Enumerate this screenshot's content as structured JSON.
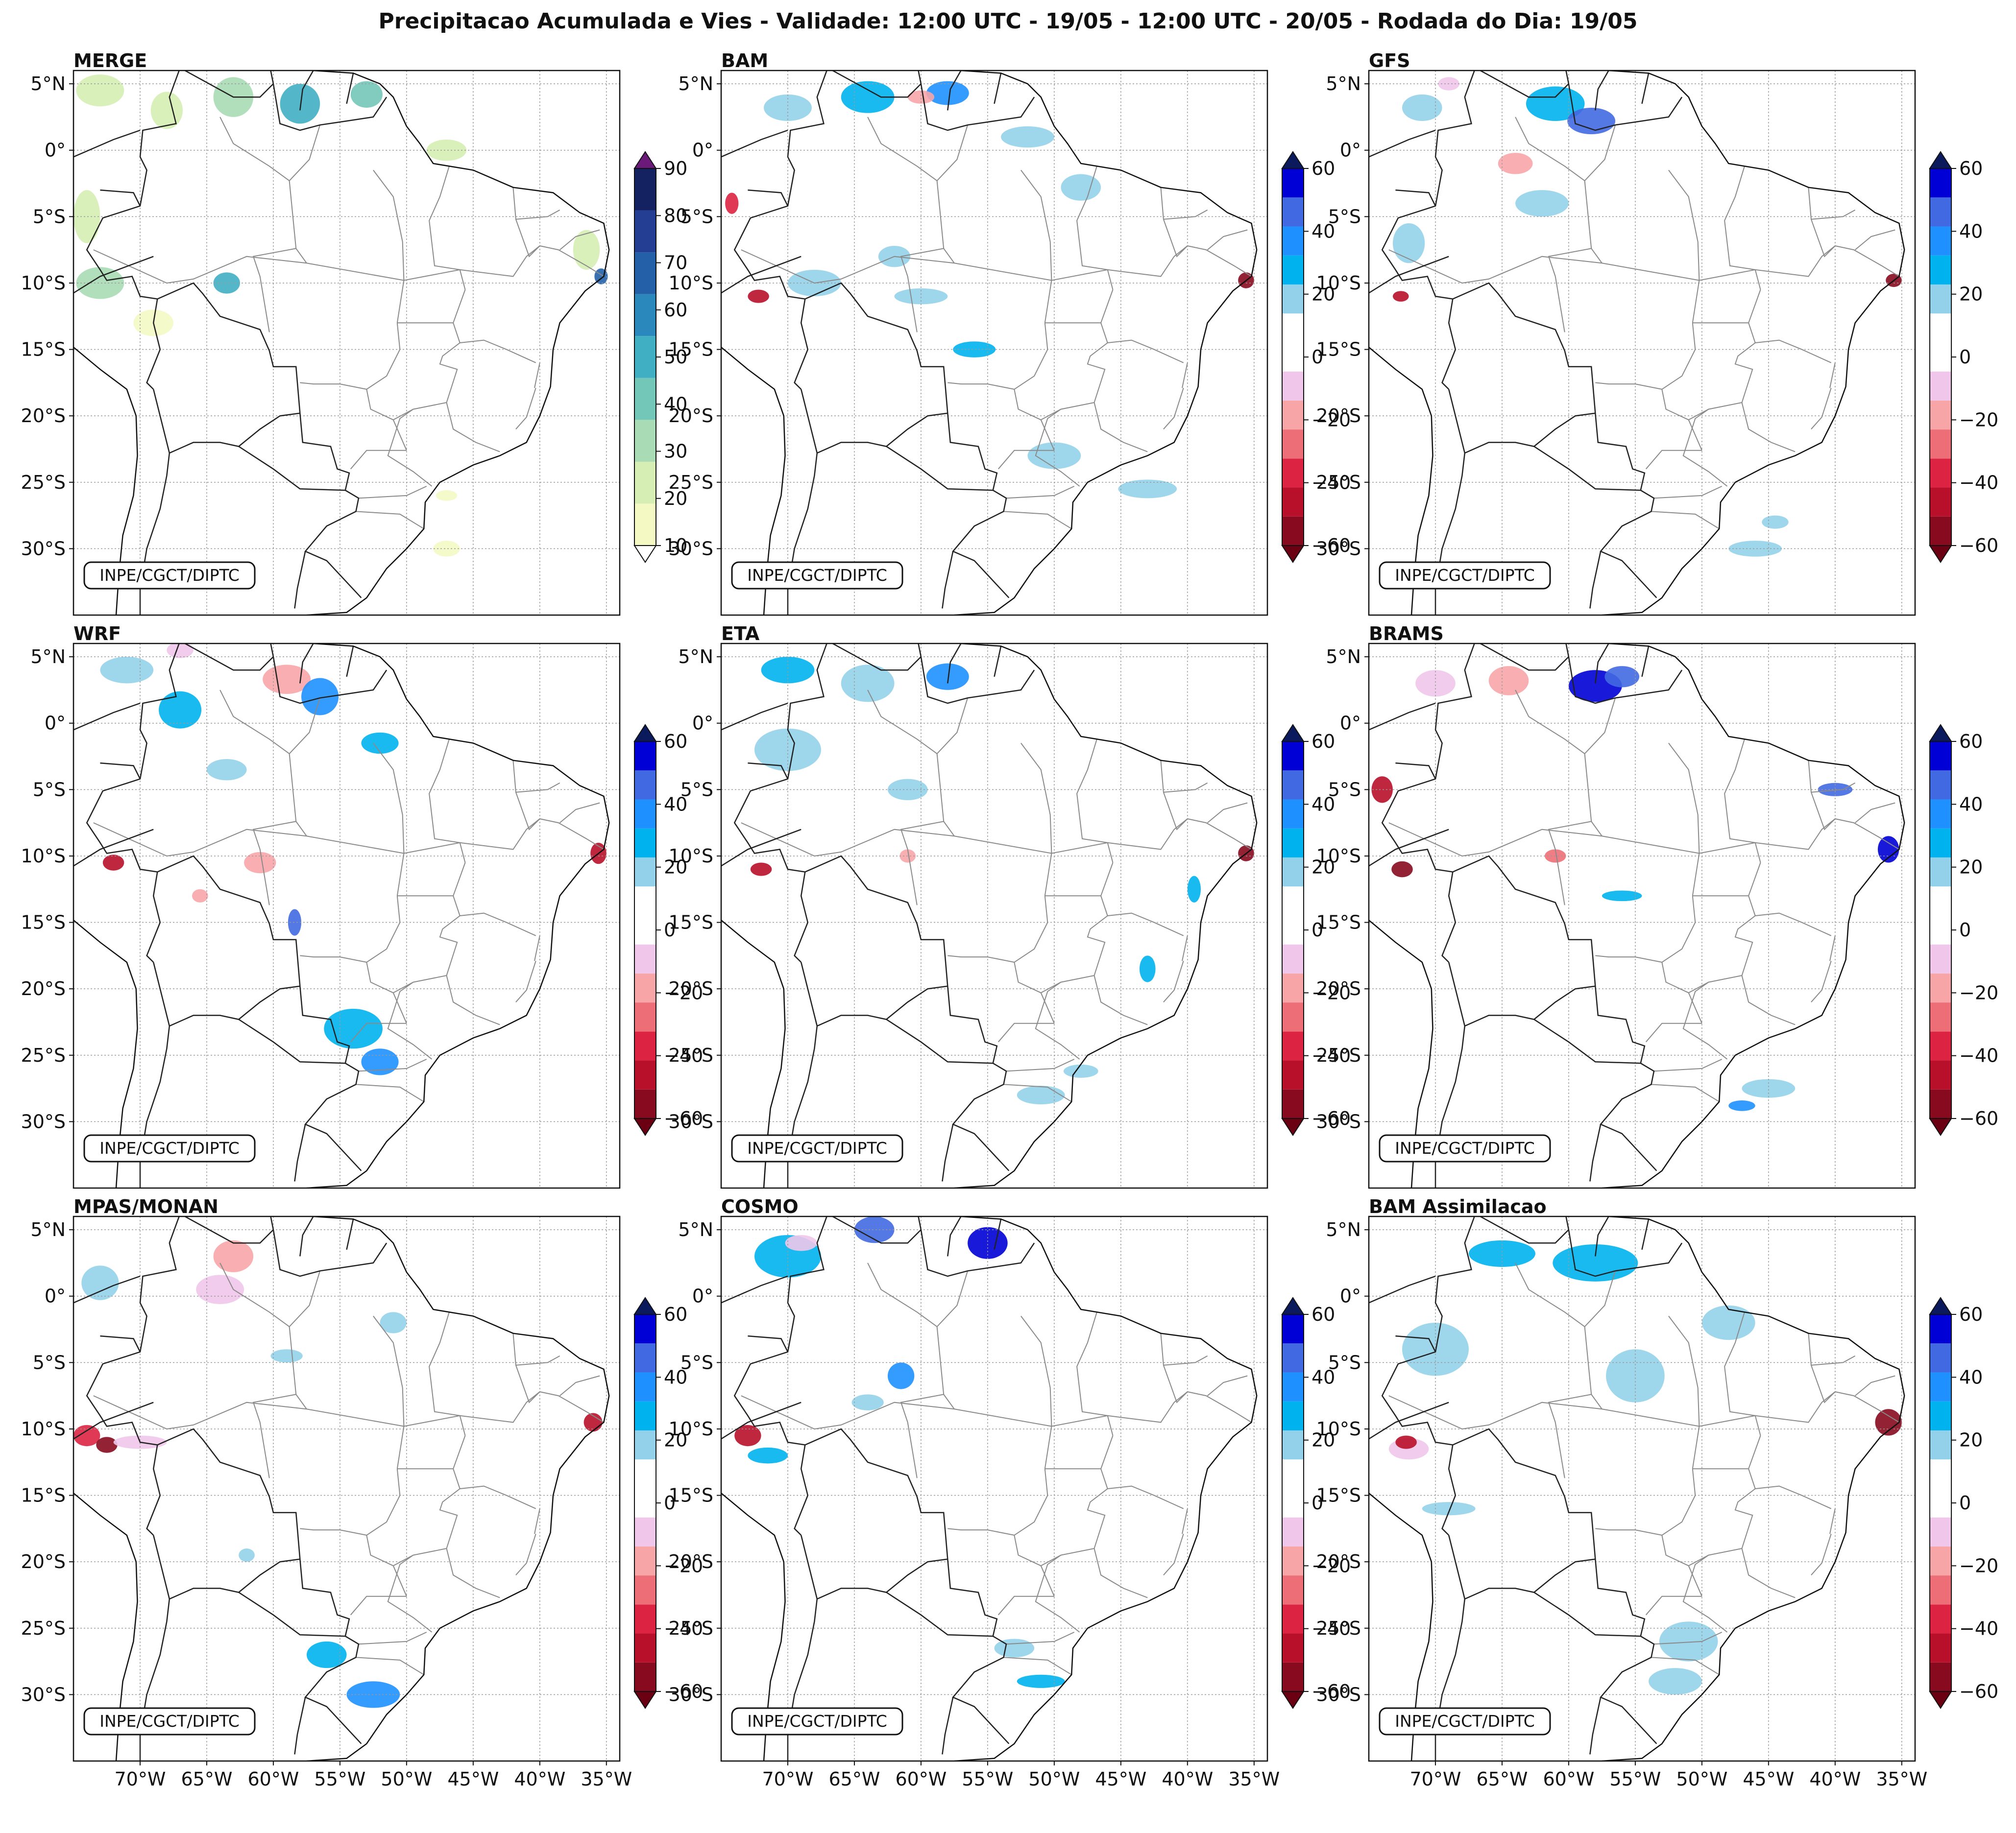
{
  "figure": {
    "title": "Precipitacao Acumulada e Vies - Validade: 12:00 UTC - 19/05 - 12:00 UTC - 20/05 - Rodada do Dia: 19/05",
    "credit": "INPE/CGCT/DIPTC",
    "lat_ticks": [
      "5°N",
      "0°",
      "5°S",
      "10°S",
      "15°S",
      "20°S",
      "25°S",
      "30°S"
    ],
    "lon_ticks": [
      "70°W",
      "65°W",
      "60°W",
      "55°W",
      "50°W",
      "45°W",
      "40°W",
      "35°W"
    ]
  },
  "colorbars": {
    "precip": {
      "ticks": [
        "90",
        "80",
        "70",
        "60",
        "50",
        "40",
        "30",
        "20",
        "10"
      ],
      "colors": [
        "#f4f9c4",
        "#d6eeb4",
        "#a9dcb4",
        "#73c7b8",
        "#40afc3",
        "#2a88bd",
        "#2360a8",
        "#243e93",
        "#152261"
      ],
      "extend_max_color": "#6b1a7a"
    },
    "bias": {
      "ticks": [
        "60",
        "40",
        "20",
        "0",
        "−20",
        "−40",
        "−60"
      ],
      "colors": [
        "#870a1e",
        "#b8102a",
        "#dc2342",
        "#ee6e77",
        "#f8a5a8",
        "#f0c6ea",
        "#ffffff",
        "#ffffff",
        "#93d1ea",
        "#00b2ee",
        "#1e90ff",
        "#4169e1",
        "#0000d6"
      ],
      "extend_min_color": "#6a0012",
      "extend_max_color": "#0b1a5c"
    }
  },
  "panels": [
    {
      "title": "MERGE",
      "scale": "precip"
    },
    {
      "title": "BAM",
      "scale": "bias"
    },
    {
      "title": "GFS",
      "scale": "bias"
    },
    {
      "title": "WRF",
      "scale": "bias"
    },
    {
      "title": "ETA",
      "scale": "bias"
    },
    {
      "title": "BRAMS",
      "scale": "bias"
    },
    {
      "title": "MPAS/MONAN",
      "scale": "bias"
    },
    {
      "title": "COSMO",
      "scale": "bias"
    },
    {
      "title": "BAM Assimilacao",
      "scale": "bias"
    }
  ]
}
